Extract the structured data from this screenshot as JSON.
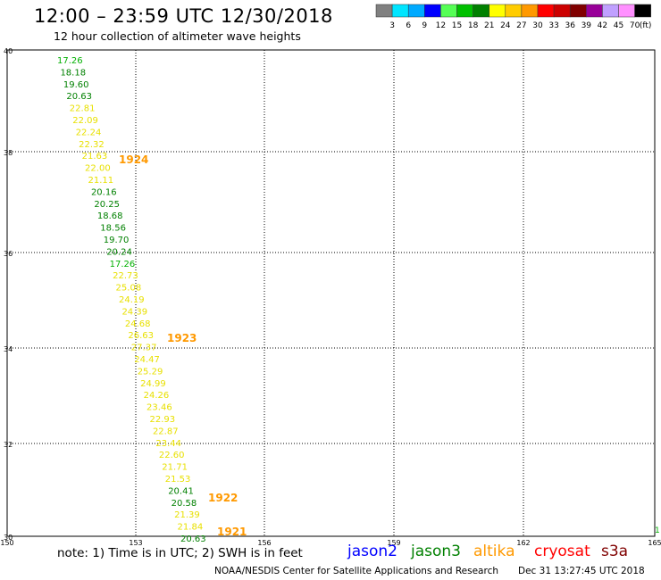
{
  "header": {
    "title": "12:00 – 23:59 UTC 12/30/2018",
    "subtitle": "12 hour collection of altimeter wave heights"
  },
  "legend_scale": {
    "labels": [
      "3",
      "6",
      "9",
      "12",
      "15",
      "18",
      "21",
      "24",
      "27",
      "30",
      "33",
      "36",
      "39",
      "42",
      "45",
      "70"
    ],
    "unit_label": "(ft)",
    "colors": [
      "#808080",
      "#00e5ff",
      "#00aaff",
      "#0000ff",
      "#55ff55",
      "#00c000",
      "#008000",
      "#ffff00",
      "#ffcc00",
      "#ff9900",
      "#ff0000",
      "#cc0000",
      "#800000",
      "#990099",
      "#c0a0ff",
      "#ff90ff",
      "#000000"
    ]
  },
  "axes": {
    "lat_labels": [
      "40",
      "38",
      "36",
      "34",
      "32",
      "30"
    ],
    "lon_labels": [
      "150",
      "153",
      "156",
      "159",
      "162",
      "165"
    ]
  },
  "wave_heights": {
    "labels": [
      "17.26",
      "18.18",
      "19.60",
      "20.63",
      "22.81",
      "22.09",
      "22.24",
      "22.32",
      "21.63",
      "22.00",
      "21.11",
      "20.16",
      "20.25",
      "18.68",
      "18.56",
      "19.70",
      "20.24",
      "17.26",
      "22.73",
      "25.08",
      "24.19",
      "24.39",
      "24.68",
      "26.63",
      "27.37",
      "24.47",
      "25.29",
      "24.99",
      "24.26",
      "23.46",
      "22.93",
      "22.87",
      "23.44",
      "22.60",
      "21.71",
      "21.53",
      "20.41",
      "20.58",
      "21.39",
      "21.84",
      "20.63"
    ],
    "colors": [
      "#00b000",
      "#008000",
      "#008000",
      "#008000",
      "#e8e000",
      "#e8e000",
      "#e8e000",
      "#e8e000",
      "#e8e000",
      "#e8e000",
      "#e8e000",
      "#008000",
      "#008000",
      "#008000",
      "#008000",
      "#008000",
      "#008000",
      "#00b000",
      "#e8e000",
      "#e8e000",
      "#e8e000",
      "#e8e000",
      "#e8e000",
      "#e8e000",
      "#e8e000",
      "#e8e000",
      "#e8e000",
      "#e8e000",
      "#e8e000",
      "#e8e000",
      "#e8e000",
      "#e8e000",
      "#e8e000",
      "#e8e000",
      "#e8e000",
      "#e8e000",
      "#008000",
      "#008000",
      "#e8e000",
      "#e8e000",
      "#008000"
    ]
  },
  "time_labels": {
    "values": [
      "1924",
      "1923",
      "1922",
      "1921"
    ],
    "color": "#ff9900"
  },
  "satellites": [
    {
      "name": "jason2",
      "color": "#0000ff"
    },
    {
      "name": "jason3",
      "color": "#008000"
    },
    {
      "name": "altika",
      "color": "#ff9900"
    },
    {
      "name": "cryosat",
      "color": "#ff0000"
    },
    {
      "name": "s3a",
      "color": "#800000"
    }
  ],
  "footer": {
    "note": "note:  1) Time is in UTC;  2) SWH is in feet",
    "credit": "NOAA/NESDIS Center for Satellite Applications and Research",
    "timestamp": "Dec 31 13:27:45 UTC 2018"
  },
  "edge_marker": "1"
}
